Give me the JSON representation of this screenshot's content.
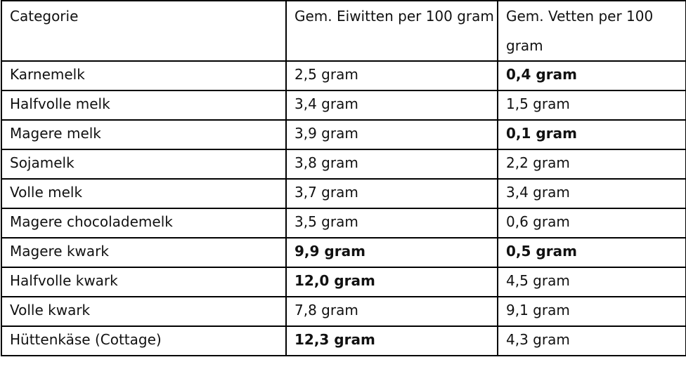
{
  "table": {
    "header": [
      "Categorie",
      "Gem. Eiwitten per 100 gram",
      "Gem. Vetten per 100 gram"
    ],
    "rows": [
      [
        "Karnemelk",
        "2,5 gram",
        "0,4 gram"
      ],
      [
        "Halfvolle melk",
        "3,4 gram",
        "1,5 gram"
      ],
      [
        "Magere melk",
        "3,9 gram",
        "0,1 gram"
      ],
      [
        "Sojamelk",
        "3,8 gram",
        "2,2 gram"
      ],
      [
        "Volle melk",
        "3,7 gram",
        "3,4 gram"
      ],
      [
        "Magere chocolademelk",
        "3,5 gram",
        "0,6 gram"
      ],
      [
        "Magere kwark",
        "9,9 gram",
        "0,5 gram"
      ],
      [
        "Halfvolle kwark",
        "12,0 gram",
        "4,5 gram"
      ],
      [
        "Volle kwark",
        "7,8 gram",
        "9,1 gram"
      ],
      [
        "Hüttenkäse (Cottage)",
        "12,3 gram",
        "4,3 gram"
      ]
    ]
  }
}
